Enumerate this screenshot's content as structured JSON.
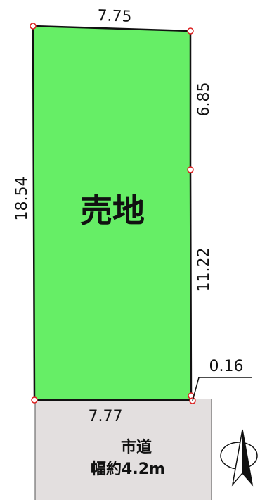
{
  "lot": {
    "label": "売地",
    "fill_color": "#66ee66",
    "outline_color": "#111111"
  },
  "dimensions": {
    "top": "7.75",
    "left": "18.54",
    "right_upper": "6.85",
    "right_lower": "11.22",
    "corner_offset": "0.16",
    "bottom": "7.77"
  },
  "road": {
    "name": "市道",
    "width": "幅約4.2m",
    "fill_color": "#e3dfdf"
  },
  "vertex_marker_color": "#dd2222",
  "north_arrow_icon": "north-arrow-icon"
}
